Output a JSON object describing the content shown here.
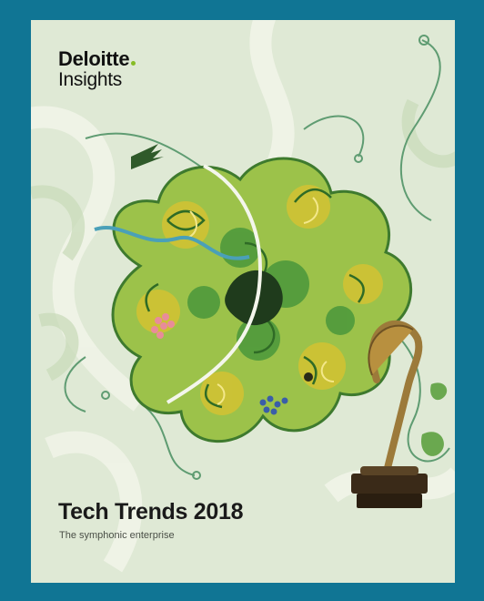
{
  "brand": {
    "name": "Deloitte",
    "sub": "Insights",
    "dot_color": "#86bc25"
  },
  "cover": {
    "title": "Tech Trends 2018",
    "subtitle": "The symphonic enterprise",
    "frame_color": "#107594",
    "background_color": "#dfe9d5",
    "illustration": "ornate-green-flower-with-gramophone"
  }
}
